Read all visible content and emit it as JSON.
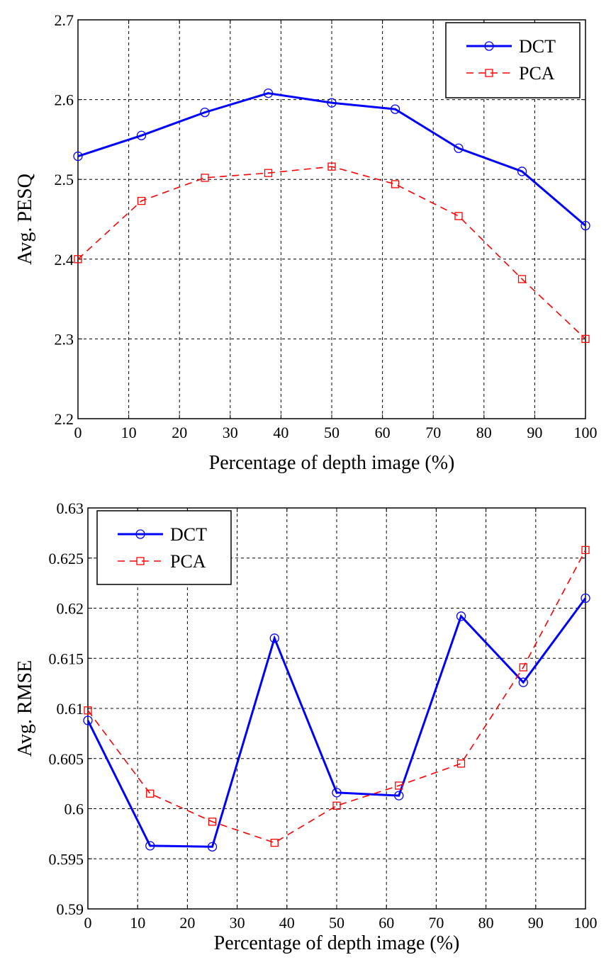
{
  "chart_data": [
    {
      "type": "line",
      "title": "",
      "xlabel": "Percentage of depth image (%)",
      "ylabel": "Avg. PESQ",
      "xlim": [
        0,
        100
      ],
      "ylim": [
        2.2,
        2.7
      ],
      "xticks": [
        "0",
        "10",
        "20",
        "30",
        "40",
        "50",
        "60",
        "70",
        "80",
        "90",
        "100"
      ],
      "yticks": [
        "2.2",
        "2.3",
        "2.4",
        "2.5",
        "2.6",
        "2.7"
      ],
      "grid": true,
      "legend_position": "top-right",
      "x": [
        0,
        12.5,
        25,
        37.5,
        50,
        62.5,
        75,
        87.5,
        100
      ],
      "series": [
        {
          "name": "DCT",
          "color": "#0000ff",
          "style": "solid",
          "marker": "circle",
          "values": [
            2.529,
            2.555,
            2.584,
            2.608,
            2.596,
            2.588,
            2.539,
            2.51,
            2.442
          ]
        },
        {
          "name": "PCA",
          "color": "#ff0000",
          "style": "dashed",
          "marker": "square",
          "values": [
            2.4,
            2.473,
            2.502,
            2.508,
            2.516,
            2.494,
            2.454,
            2.375,
            2.3
          ]
        }
      ]
    },
    {
      "type": "line",
      "title": "",
      "xlabel": "Percentage of depth image (%)",
      "ylabel": "Avg. RMSE",
      "xlim": [
        0,
        100
      ],
      "ylim": [
        0.59,
        0.63
      ],
      "xticks": [
        "0",
        "10",
        "20",
        "30",
        "40",
        "50",
        "60",
        "70",
        "80",
        "90",
        "100"
      ],
      "yticks": [
        "0.59",
        "0.595",
        "0.6",
        "0.605",
        "0.61",
        "0.615",
        "0.62",
        "0.625",
        "0.63"
      ],
      "grid": true,
      "legend_position": "top-left",
      "x": [
        0,
        12.5,
        25,
        37.5,
        50,
        62.5,
        75,
        87.5,
        100
      ],
      "series": [
        {
          "name": "DCT",
          "color": "#0000ff",
          "style": "solid",
          "marker": "circle",
          "values": [
            0.6088,
            0.5963,
            0.5962,
            0.617,
            0.6016,
            0.6013,
            0.6192,
            0.6126,
            0.621
          ]
        },
        {
          "name": "PCA",
          "color": "#ff0000",
          "style": "dashed",
          "marker": "square",
          "values": [
            0.6098,
            0.6015,
            0.5987,
            0.5966,
            0.6003,
            0.6023,
            0.6045,
            0.6141,
            0.6258
          ]
        }
      ]
    }
  ]
}
